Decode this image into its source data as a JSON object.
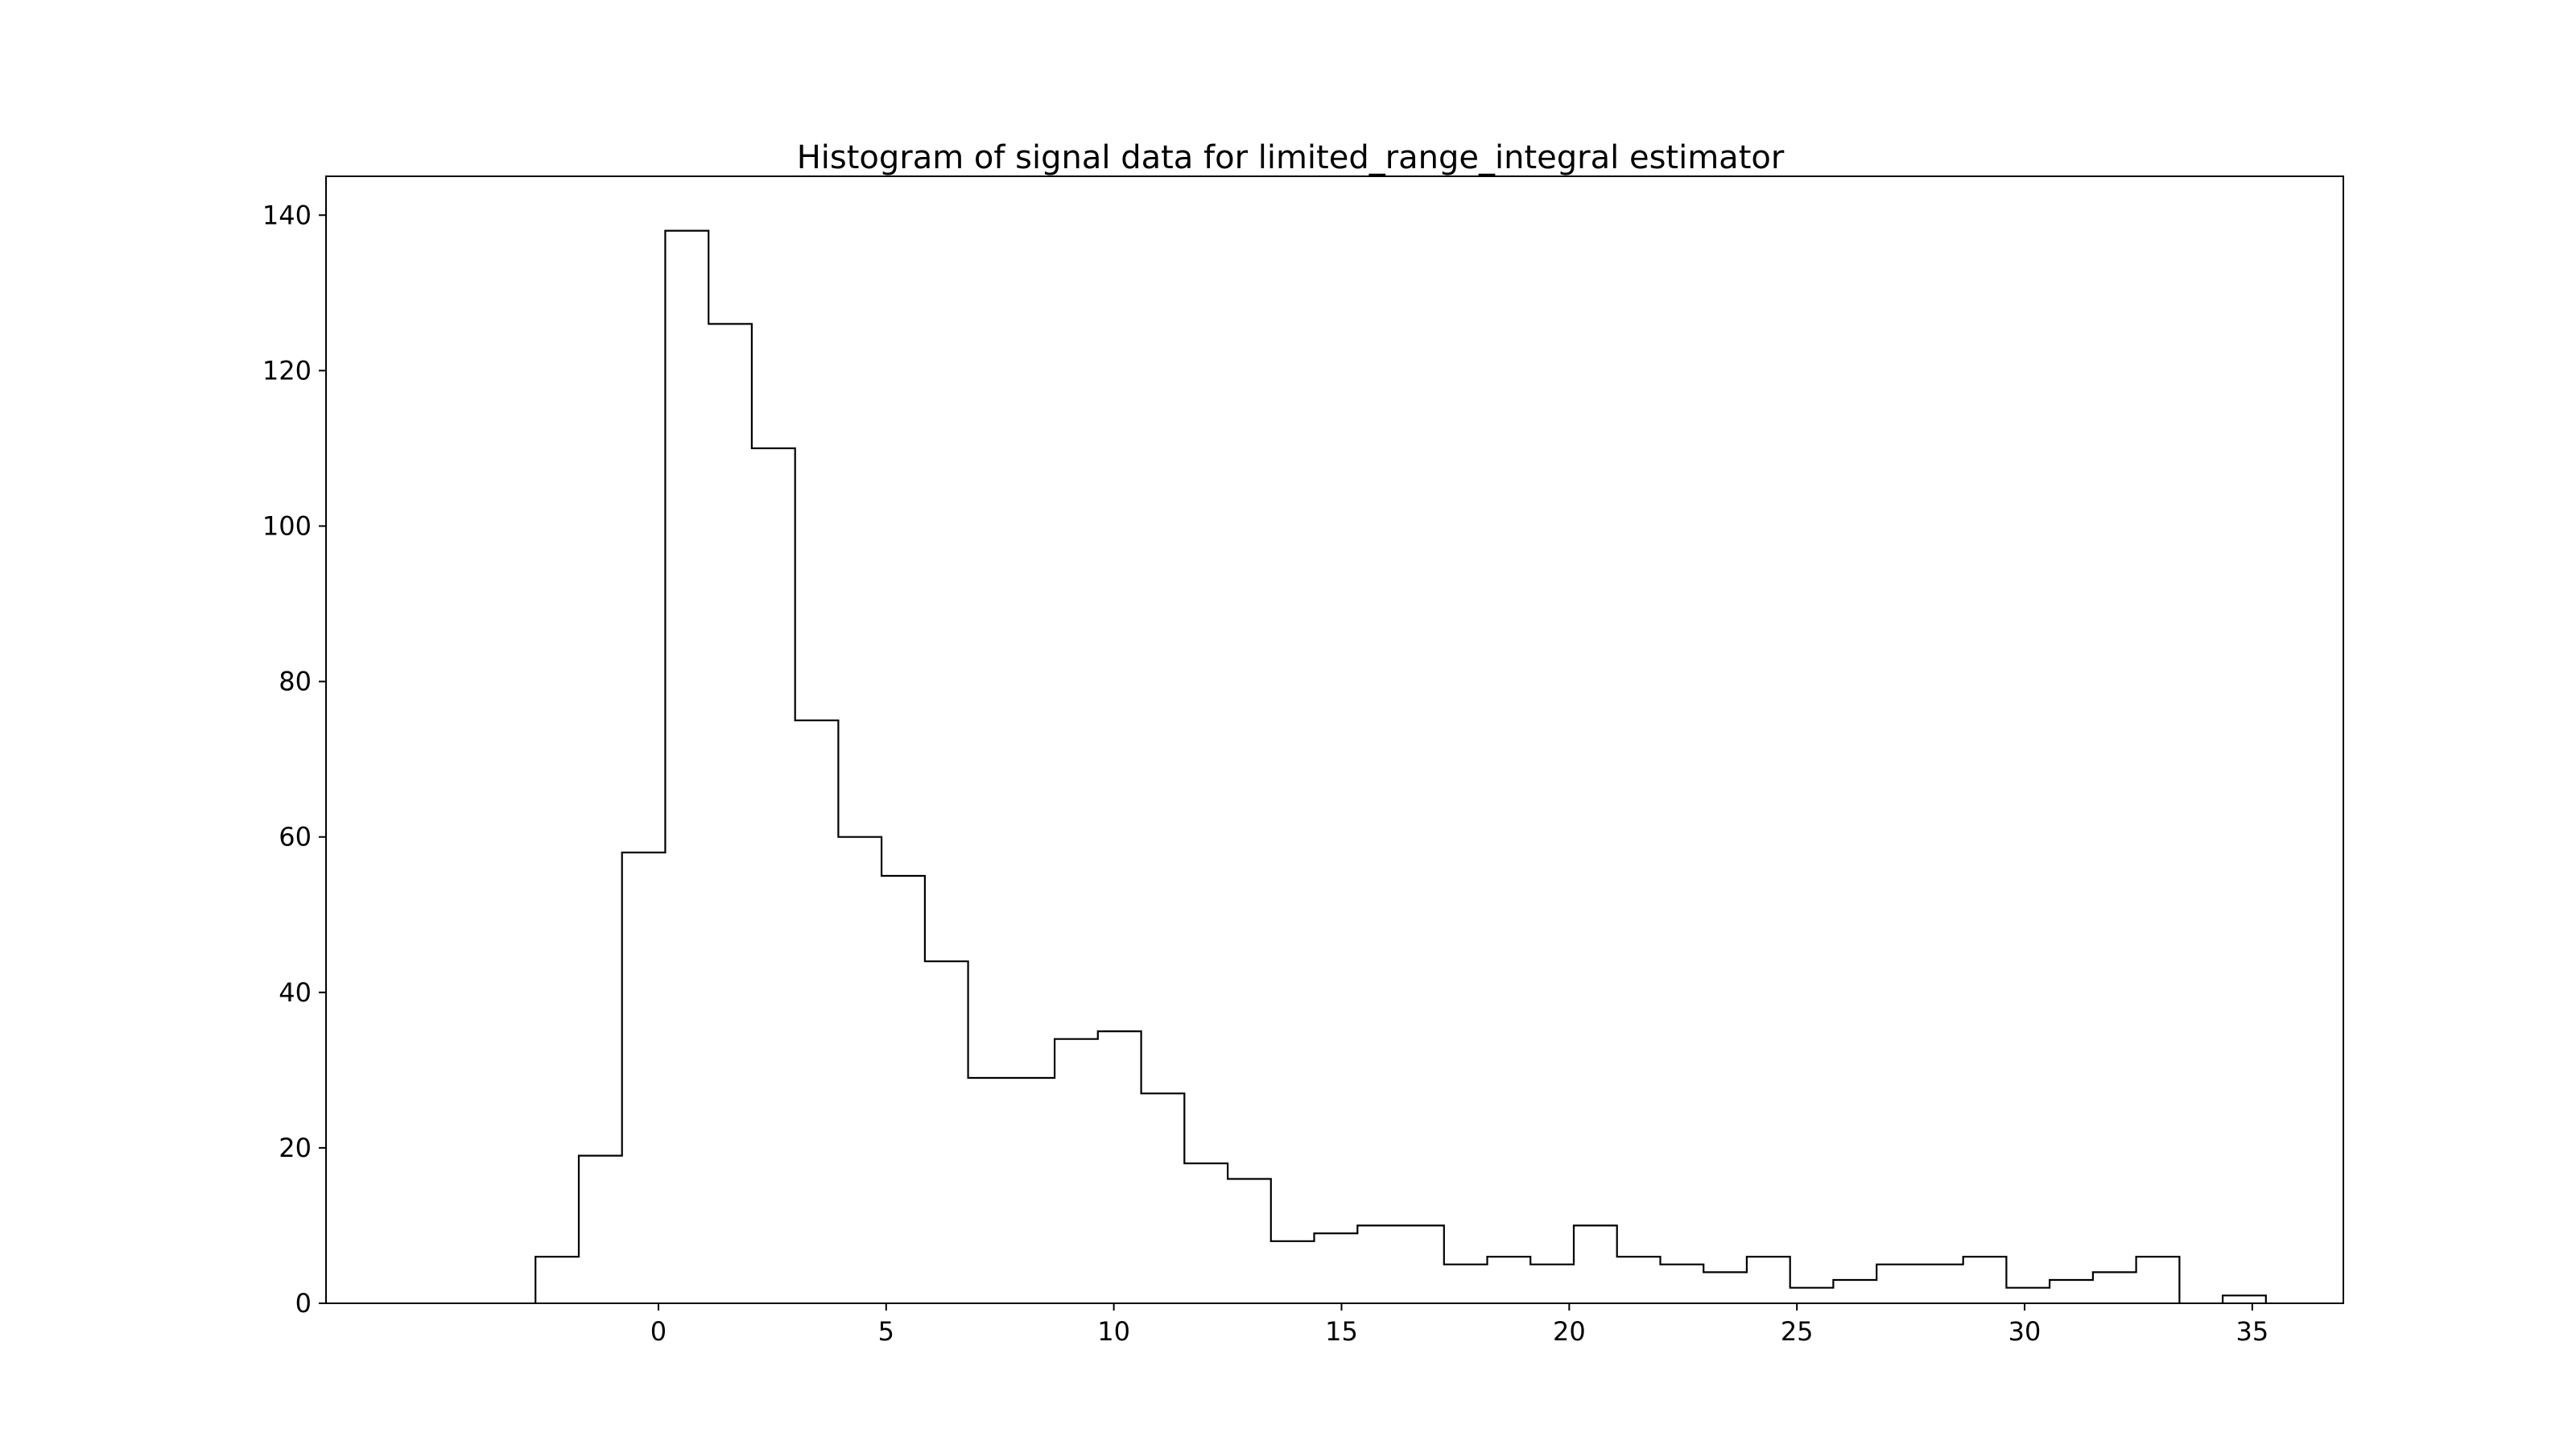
{
  "chart_data": {
    "type": "bar",
    "histtype": "step",
    "title": "Histogram of signal data for limited_range_integral estimator",
    "xlabel": "",
    "ylabel": "",
    "bin_start": -2.7,
    "bin_width": 0.95,
    "values": [
      6,
      19,
      58,
      138,
      126,
      110,
      75,
      60,
      55,
      44,
      29,
      29,
      34,
      35,
      27,
      18,
      16,
      8,
      9,
      10,
      10,
      5,
      6,
      5,
      10,
      6,
      5,
      4,
      6,
      2,
      3,
      5,
      5,
      6,
      2,
      3,
      4,
      6,
      0,
      1
    ],
    "xlim": [
      -7.3,
      37.0
    ],
    "ylim": [
      0,
      145
    ],
    "xticks": [
      0,
      5,
      10,
      15,
      20,
      25,
      30,
      35
    ],
    "yticks": [
      0,
      20,
      40,
      60,
      80,
      100,
      120,
      140
    ],
    "grid": false,
    "legend": "none",
    "line_color": "#000000"
  }
}
